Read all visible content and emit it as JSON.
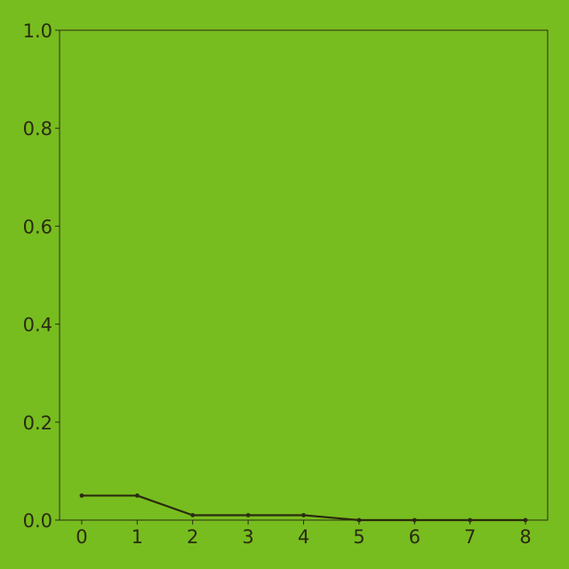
{
  "chart_data": {
    "type": "line",
    "x": [
      0,
      1,
      2,
      3,
      4,
      5,
      6,
      7,
      8
    ],
    "series": [
      {
        "values": [
          0.05,
          0.05,
          0.01,
          0.01,
          0.01,
          0.0,
          0.0,
          0.0,
          0.0
        ]
      }
    ],
    "xticks": [
      "0",
      "1",
      "2",
      "3",
      "4",
      "5",
      "6",
      "7",
      "8"
    ],
    "yticks": [
      "0.0",
      "0.2",
      "0.4",
      "0.6",
      "0.8",
      "1.0"
    ],
    "xlim": [
      -0.4,
      8.4
    ],
    "ylim": [
      0,
      1.0
    ],
    "grid": false,
    "legend": "none",
    "title": "",
    "xlabel": "",
    "ylabel": ""
  },
  "colors": {
    "background": "#77bd1f",
    "axis": "#2b2a10",
    "line": "#2b2a10",
    "text": "#2b2a10"
  }
}
